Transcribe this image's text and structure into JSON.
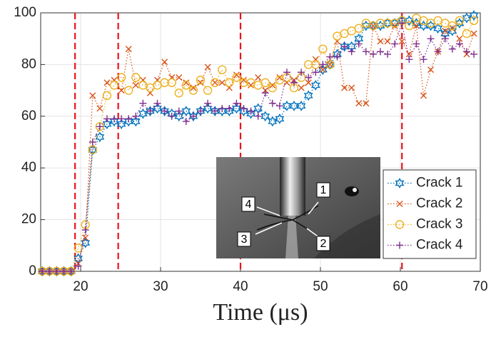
{
  "chart_data": {
    "type": "line",
    "x_label": "Time (μs)",
    "x": [
      15.2,
      16.1,
      17.0,
      17.9,
      18.8,
      19.7,
      20.6,
      21.5,
      22.4,
      23.3,
      24.2,
      25.1,
      26.0,
      26.9,
      27.8,
      28.7,
      29.6,
      30.5,
      31.4,
      32.3,
      33.2,
      34.1,
      35.0,
      35.9,
      36.8,
      37.7,
      38.6,
      39.5,
      40.4,
      41.3,
      42.2,
      43.1,
      44.0,
      44.9,
      45.8,
      46.7,
      47.6,
      48.5,
      49.4,
      50.3,
      51.2,
      52.1,
      53.0,
      53.9,
      54.8,
      55.7,
      56.6,
      57.5,
      58.4,
      59.3,
      60.2,
      61.1,
      62.0,
      62.9,
      63.8,
      64.7,
      65.6,
      66.5,
      67.4,
      68.3,
      69.2
    ],
    "series": [
      {
        "name": "Crack 1",
        "color": "#0072bd",
        "marker": "hexagram",
        "values": [
          0,
          0,
          0,
          0,
          0,
          5,
          11,
          47,
          52,
          57,
          58,
          57,
          58,
          58,
          61,
          62,
          63,
          62,
          61,
          60,
          62,
          60,
          62,
          63,
          62,
          62,
          62,
          63,
          62,
          61,
          63,
          60,
          58,
          59,
          64,
          64,
          64,
          68,
          72,
          78,
          80,
          84,
          87,
          87,
          90,
          95,
          95,
          95,
          96,
          96,
          97,
          97,
          96,
          95,
          95,
          94,
          92,
          93,
          96,
          98,
          99
        ]
      },
      {
        "name": "Crack 2",
        "color": "#d95319",
        "marker": "x",
        "values": [
          0,
          0,
          0,
          0,
          0,
          3,
          13,
          68,
          63,
          73,
          74,
          70,
          86,
          72,
          74,
          69,
          74,
          81,
          75,
          75,
          73,
          71,
          73,
          79,
          73,
          73,
          71,
          76,
          74,
          72,
          75,
          70,
          72,
          75,
          73,
          74,
          71,
          73,
          82,
          78,
          80,
          89,
          71,
          71,
          65,
          65,
          95,
          89,
          89,
          95,
          89,
          84,
          95,
          68,
          78,
          85,
          93,
          94,
          90,
          84,
          92
        ]
      },
      {
        "name": "Crack 3",
        "color": "#edb120",
        "marker": "circle",
        "values": [
          0,
          0,
          0,
          0,
          0,
          9,
          18,
          47,
          56,
          68,
          72,
          75,
          70,
          75,
          72,
          71,
          72,
          73,
          73,
          69,
          72,
          70,
          74,
          70,
          73,
          78,
          73,
          75,
          73,
          73,
          72,
          73,
          71,
          74,
          75,
          71,
          75,
          80,
          80,
          86,
          80,
          91,
          92,
          93,
          94,
          96,
          95,
          96,
          96,
          96,
          97,
          95,
          98,
          97,
          96,
          97,
          96,
          95,
          97,
          92,
          97
        ]
      },
      {
        "name": "Crack 4",
        "color": "#7e2f8e",
        "marker": "plus",
        "values": [
          0,
          0,
          0,
          0,
          0,
          2,
          16,
          50,
          56,
          59,
          59,
          59,
          59,
          60,
          65,
          62,
          65,
          62,
          60,
          62,
          58,
          60,
          62,
          65,
          62,
          63,
          63,
          65,
          63,
          62,
          60,
          69,
          65,
          64,
          77,
          73,
          77,
          75,
          77,
          80,
          83,
          83,
          87,
          85,
          88,
          85,
          84,
          85,
          84,
          88,
          96,
          82,
          88,
          82,
          90,
          85,
          90,
          86,
          88,
          85,
          84
        ]
      }
    ],
    "xlim": [
      15,
      70
    ],
    "xticks": [
      20,
      30,
      40,
      50,
      60,
      70
    ],
    "ylim": [
      0,
      100
    ],
    "yticks": [
      0,
      20,
      40,
      60,
      80,
      100
    ],
    "grid": true,
    "legend": "lower right",
    "vlines": [
      19.3,
      24.7,
      40,
      60.2
    ],
    "vline_color": "#e8141c",
    "inset_labels": [
      "1",
      "2",
      "3",
      "4"
    ]
  }
}
